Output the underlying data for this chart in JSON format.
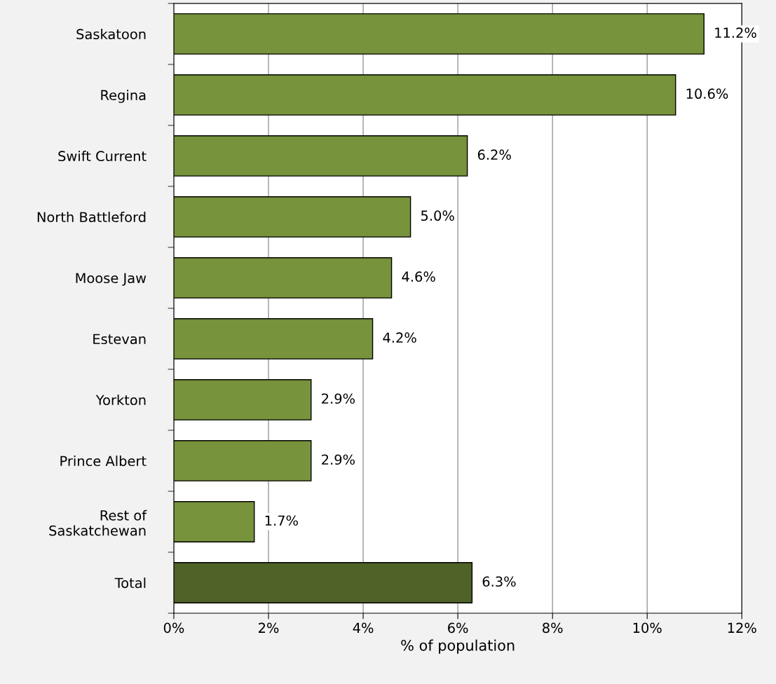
{
  "chart_data": {
    "type": "bar",
    "orientation": "horizontal",
    "xlabel": "% of population",
    "categories": [
      "Saskatoon",
      "Regina",
      "Swift Current",
      "North Battleford",
      "Moose Jaw",
      "Estevan",
      "Yorkton",
      "Prince Albert",
      "Rest of\nSaskatchewan",
      "Total"
    ],
    "values": [
      11.2,
      10.6,
      6.2,
      5.0,
      4.6,
      4.2,
      2.9,
      2.9,
      1.7,
      6.3
    ],
    "value_labels": [
      "11.2%",
      "10.6%",
      "6.2%",
      "5.0%",
      "4.6%",
      "4.2%",
      "2.9%",
      "2.9%",
      "1.7%",
      "6.3%"
    ],
    "colors": [
      "#77933c",
      "#77933c",
      "#77933c",
      "#77933c",
      "#77933c",
      "#77933c",
      "#77933c",
      "#77933c",
      "#77933c",
      "#4f6228"
    ],
    "xlim": [
      0,
      12
    ],
    "xticks": [
      {
        "value": 0,
        "label": "0%"
      },
      {
        "value": 2,
        "label": "2%"
      },
      {
        "value": 4,
        "label": "4%"
      },
      {
        "value": 6,
        "label": "6%"
      },
      {
        "value": 8,
        "label": "8%"
      },
      {
        "value": 10,
        "label": "10%"
      },
      {
        "value": 12,
        "label": "12%"
      }
    ],
    "grid": "x",
    "legend": false
  }
}
